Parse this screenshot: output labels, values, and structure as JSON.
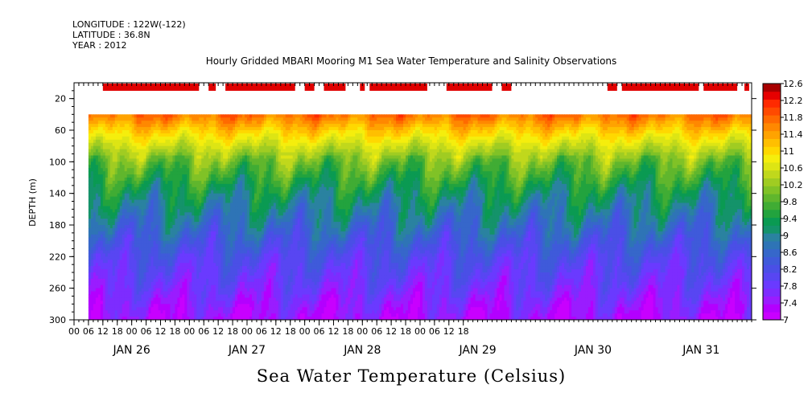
{
  "header": {
    "longitude": "LONGITUDE : 122W(-122)",
    "latitude": "LATITUDE : 36.8N",
    "year": "YEAR : 2012"
  },
  "chart_data": {
    "type": "heatmap",
    "title": "Hourly Gridded MBARI Mooring M1 Sea Water Temperature and Salinity Observations",
    "xlabel": "Sea Water Temperature (Celsius)",
    "ylabel": "DEPTH (m)",
    "x_start": "JAN 25 2012 00:00",
    "x_range_hours": [
      0,
      282
    ],
    "data_start_hour": 6,
    "data_depth_range_m": [
      40,
      300
    ],
    "ylim": [
      300,
      0
    ],
    "y_ticks": [
      20,
      60,
      100,
      140,
      180,
      220,
      260,
      300
    ],
    "x_hour_ticks": [
      "00",
      "06",
      "12",
      "18",
      "00",
      "06",
      "12",
      "18",
      "00",
      "06",
      "12",
      "18",
      "00",
      "06",
      "12",
      "18",
      "00",
      "06",
      "12",
      "18",
      "00",
      "06",
      "12",
      "18",
      "00",
      "06",
      "12",
      "18"
    ],
    "x_day_labels": [
      "JAN 26",
      "JAN 27",
      "JAN 28",
      "JAN 29",
      "JAN 30",
      "JAN 31"
    ],
    "x_day_label_hours": [
      24,
      72,
      120,
      168,
      216,
      261
    ],
    "color_levels": [
      7.0,
      7.2,
      7.4,
      7.6,
      7.8,
      8.0,
      8.2,
      8.4,
      8.6,
      8.8,
      9.0,
      9.2,
      9.4,
      9.6,
      9.8,
      10.0,
      10.2,
      10.4,
      10.6,
      10.8,
      11.0,
      11.2,
      11.4,
      11.6,
      11.8,
      12.0,
      12.2,
      12.4,
      12.6
    ],
    "colorbar_labels": [
      "12.6",
      "12.2",
      "11.8",
      "11.4",
      "11",
      "10.6",
      "10.2",
      "9.8",
      "9.4",
      "9",
      "8.6",
      "8.2",
      "7.8",
      "7.4",
      "7"
    ],
    "colors": [
      "#c800ff",
      "#b300ff",
      "#9a1cff",
      "#7d2cff",
      "#6a3aff",
      "#5846f2",
      "#4a4fe6",
      "#3f5ada",
      "#3667ca",
      "#2e74b6",
      "#2a82a0",
      "#14936a",
      "#0a9a52",
      "#22a33e",
      "#40ac34",
      "#60b62d",
      "#80c227",
      "#a0cc22",
      "#c0d81c",
      "#dde514",
      "#f5ee0d",
      "#ffd800",
      "#ffbf00",
      "#ffa300",
      "#ff8800",
      "#ff6a00",
      "#ff4a00",
      "#ff2a00",
      "#e60000",
      "#a80000"
    ],
    "profile_depths_m": [
      40,
      60,
      80,
      100,
      120,
      140,
      160,
      180,
      200,
      220,
      240,
      260,
      280,
      300
    ],
    "profile_mean_temps_c": [
      11.9,
      11.2,
      10.6,
      10.0,
      9.6,
      9.2,
      8.9,
      8.6,
      8.3,
      8.0,
      7.8,
      7.6,
      7.35,
      7.15
    ],
    "surface_obs_bars_hours": [
      [
        12,
        52
      ],
      [
        56,
        59
      ],
      [
        63,
        92
      ],
      [
        96,
        100
      ],
      [
        104,
        113
      ],
      [
        119,
        121
      ],
      [
        123,
        147
      ],
      [
        155,
        174
      ],
      [
        178,
        182
      ]
    ]
  }
}
